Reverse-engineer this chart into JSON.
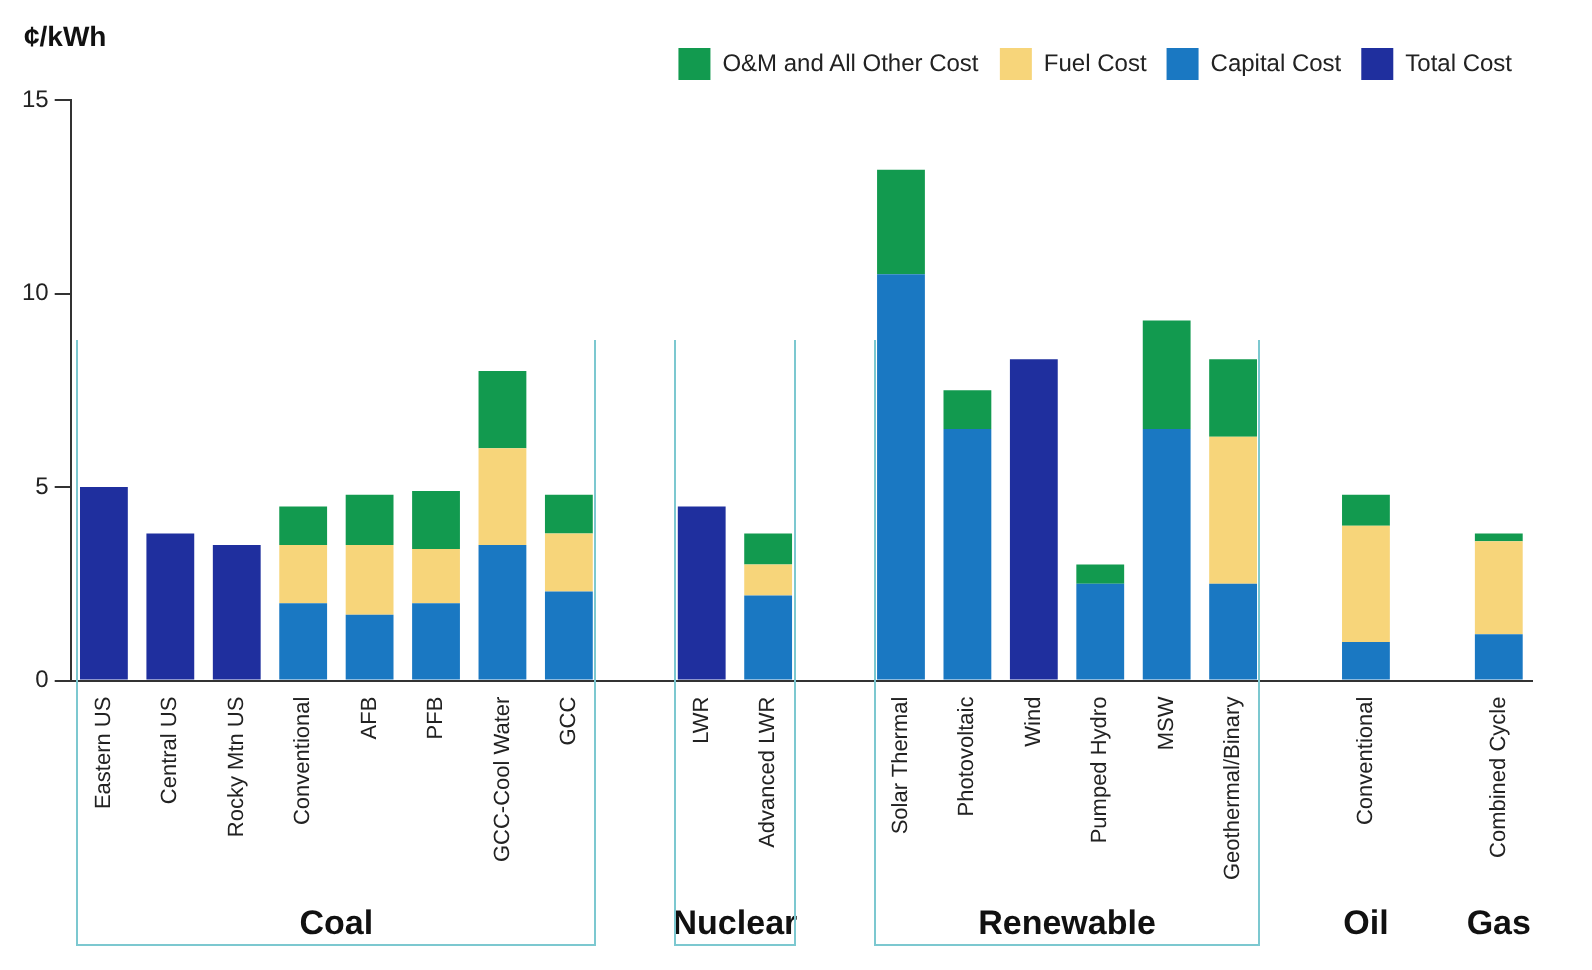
{
  "chart_data": {
    "type": "bar",
    "stacked": true,
    "ylabel": "¢/kWh",
    "categories": [
      "Eastern US",
      "Central US",
      "Rocky Mtn US",
      "Conventional",
      "AFB",
      "PFB",
      "GCC-Cool Water",
      "GCC",
      null,
      "LWR",
      "Advanced LWR",
      null,
      "Solar Thermal",
      "Photovoltaic",
      "Wind",
      "Pumped Hydro",
      "MSW",
      "Geothermal/Binary",
      null,
      "Conventional",
      null,
      "Combined Cycle"
    ],
    "series": [
      {
        "name": "Total Cost",
        "color": "#1f2f9e",
        "values": [
          5.0,
          3.8,
          3.5,
          null,
          null,
          null,
          null,
          null,
          null,
          4.5,
          null,
          null,
          null,
          null,
          8.3,
          null,
          null,
          null,
          null,
          null,
          null,
          null
        ]
      },
      {
        "name": "Capital Cost",
        "color": "#1a78c2",
        "values": [
          null,
          null,
          null,
          2.0,
          1.7,
          2.0,
          3.5,
          2.3,
          null,
          null,
          2.2,
          null,
          10.5,
          6.5,
          null,
          2.5,
          6.5,
          2.5,
          null,
          1.0,
          null,
          1.2
        ]
      },
      {
        "name": "Fuel Cost",
        "color": "#f7d57a",
        "values": [
          null,
          null,
          null,
          1.5,
          1.8,
          1.4,
          2.5,
          1.5,
          null,
          null,
          0.8,
          null,
          null,
          null,
          null,
          null,
          null,
          3.8,
          null,
          3.0,
          null,
          2.4
        ]
      },
      {
        "name": "O&M and All Other Cost",
        "color": "#129a4f",
        "values": [
          null,
          null,
          null,
          1.0,
          1.3,
          1.5,
          2.0,
          1.0,
          null,
          null,
          0.8,
          null,
          2.7,
          1.0,
          null,
          0.5,
          2.8,
          2.0,
          null,
          0.8,
          null,
          0.2
        ]
      }
    ],
    "ylim": [
      0,
      15
    ],
    "yticks": [
      0,
      5,
      10,
      15
    ],
    "grid": false,
    "legend": "top right",
    "annotations": [
      "Coal",
      "Nuclear",
      "Renewable",
      "Oil",
      "Gas"
    ]
  }
}
